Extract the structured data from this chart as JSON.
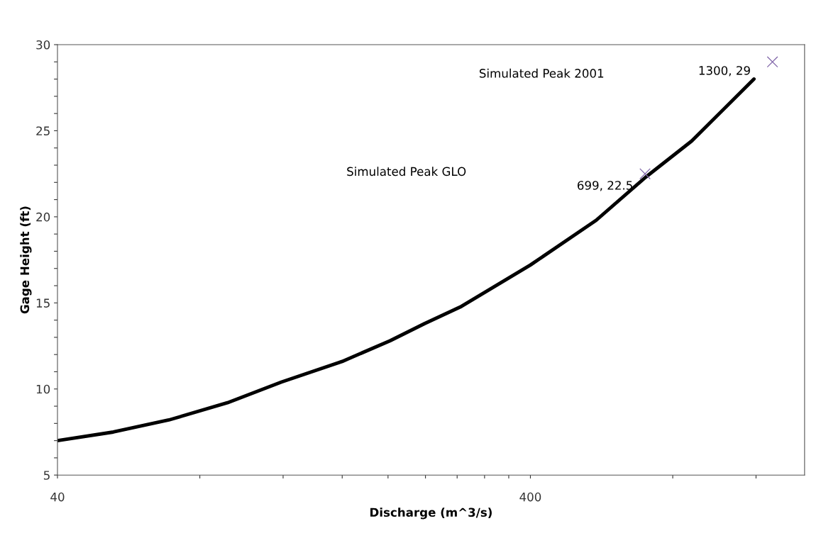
{
  "chart_data": {
    "type": "line",
    "xlabel": "Discharge (m^3/s)",
    "ylabel": "Gage Height (ft)",
    "log": "x",
    "xlim": [
      40,
      1520
    ],
    "ylim": [
      5,
      30
    ],
    "xticks": [
      40,
      {
        "value": 80,
        "label": null
      },
      {
        "value": 120,
        "label": null
      },
      {
        "value": 160,
        "label": null
      },
      {
        "value": 200,
        "label": null
      },
      {
        "value": 240,
        "label": null
      },
      {
        "value": 280,
        "label": null
      },
      {
        "value": 320,
        "label": null
      },
      {
        "value": 360,
        "label": null
      },
      400,
      {
        "value": 800,
        "label": null
      },
      {
        "value": 1200,
        "label": null
      }
    ],
    "yticks": [
      5,
      {
        "value": 6,
        "label": null
      },
      {
        "value": 7,
        "label": null
      },
      {
        "value": 8,
        "label": null
      },
      {
        "value": 9,
        "label": null
      },
      10,
      {
        "value": 11,
        "label": null
      },
      {
        "value": 12,
        "label": null
      },
      {
        "value": 13,
        "label": null
      },
      {
        "value": 14,
        "label": null
      },
      15,
      {
        "value": 16,
        "label": null
      },
      {
        "value": 17,
        "label": null
      },
      {
        "value": 18,
        "label": null
      },
      {
        "value": 19,
        "label": null
      },
      20,
      {
        "value": 21,
        "label": null
      },
      {
        "value": 22,
        "label": null
      },
      {
        "value": 23,
        "label": null
      },
      {
        "value": 24,
        "label": null
      },
      25,
      {
        "value": 26,
        "label": null
      },
      {
        "value": 27,
        "label": null
      },
      {
        "value": 28,
        "label": null
      },
      {
        "value": 29,
        "label": null
      },
      30
    ],
    "grid": false,
    "legend": false,
    "annotations": [
      "Simulated Peak GLO",
      "Simulated Peak 2001"
    ],
    "series": [
      {
        "color": "#000000",
        "marker": "none",
        "line_style": "solid",
        "x": [
          40,
          52.5,
          68.8,
          91.5,
          119,
          160,
          202,
          239,
          286,
          400,
          551,
          701,
          877,
          1188
        ],
        "values": [
          7.0,
          7.5,
          8.2,
          9.2,
          10.4,
          11.6,
          12.8,
          13.8,
          14.8,
          17.2,
          19.8,
          22.3,
          24.4,
          28.0
        ]
      },
      {
        "type": "scatter",
        "color": "#7f64a8",
        "marker": "cross",
        "x": [
          699
        ],
        "values": [
          22.5
        ],
        "value_labels": [
          "699, 22.5"
        ]
      },
      {
        "type": "scatter",
        "color": "#7f64a8",
        "marker": "cross",
        "x": [
          1300
        ],
        "values": [
          29
        ],
        "value_labels": [
          "1300, 29"
        ]
      }
    ]
  }
}
